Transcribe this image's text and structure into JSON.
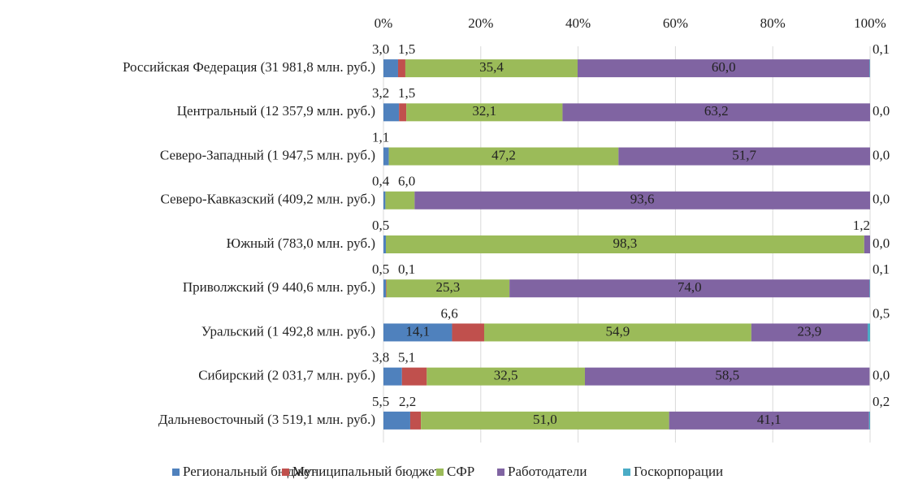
{
  "chart_data": {
    "type": "stacked_bar_horizontal",
    "categories": [
      "Российская Федерация (31 981,8 млн. руб.)",
      "Центральный (12 357,9 млн. руб.)",
      "Северо-Западный (1 947,5 млн. руб.)",
      "Северо-Кавказский (409,2 млн. руб.)",
      "Южный (783,0 млн. руб.)",
      "Приволжский (9 440,6 млн. руб.)",
      "Уральский (1 492,8 млн. руб.)",
      "Сибирский (2 031,7 млн. руб.)",
      "Дальневосточный (3 519,1 млн. руб.)"
    ],
    "series": [
      {
        "name": "Региональный бюджет",
        "color": "#4f81bd",
        "values": [
          3.0,
          3.2,
          1.1,
          0.4,
          0.5,
          0.5,
          14.1,
          3.8,
          5.5
        ],
        "value_labels": [
          "3,0",
          "3,2",
          "1,1",
          "0,4",
          "0,5",
          "0,5",
          "14,1",
          "3,8",
          "5,5"
        ]
      },
      {
        "name": "Муниципальный бюджет",
        "color": "#c0504d",
        "values": [
          1.5,
          1.5,
          0,
          0,
          0,
          0.1,
          6.6,
          5.1,
          2.2
        ],
        "value_labels": [
          "1,5",
          "1,5",
          null,
          null,
          null,
          "0,1",
          "6,6",
          "5,1",
          "2,2"
        ]
      },
      {
        "name": "СФР",
        "color": "#9bbb59",
        "values": [
          35.4,
          32.1,
          47.2,
          6.0,
          98.3,
          25.3,
          54.9,
          32.5,
          51.0
        ],
        "value_labels": [
          "35,4",
          "32,1",
          "47,2",
          "6,0",
          "98,3",
          "25,3",
          "54,9",
          "32,5",
          "51,0"
        ]
      },
      {
        "name": "Работодатели",
        "color": "#8064a2",
        "values": [
          60.0,
          63.2,
          51.7,
          93.6,
          1.2,
          74.0,
          23.9,
          58.5,
          41.1
        ],
        "value_labels": [
          "60,0",
          "63,2",
          "51,7",
          "93,6",
          "1,2",
          "74,0",
          "23,9",
          "58,5",
          "41,1"
        ]
      },
      {
        "name": "Госкорпорации",
        "color": "#4bacc6",
        "values": [
          0.1,
          0.0,
          0.0,
          0.0,
          0.0,
          0.1,
          0.5,
          0.0,
          0.2
        ],
        "value_labels": [
          "0,1",
          "0,0",
          "0,0",
          "0,0",
          "0,0",
          "0,1",
          "0,5",
          "0,0",
          "0,2"
        ]
      }
    ],
    "xlim": [
      0,
      100
    ],
    "xticks": [
      {
        "value": 0,
        "label": "0%"
      },
      {
        "value": 20,
        "label": "20%"
      },
      {
        "value": 40,
        "label": "40%"
      },
      {
        "value": 60,
        "label": "60%"
      },
      {
        "value": 80,
        "label": "80%"
      },
      {
        "value": 100,
        "label": "100%"
      }
    ],
    "grid": true,
    "legend": "bottom"
  }
}
